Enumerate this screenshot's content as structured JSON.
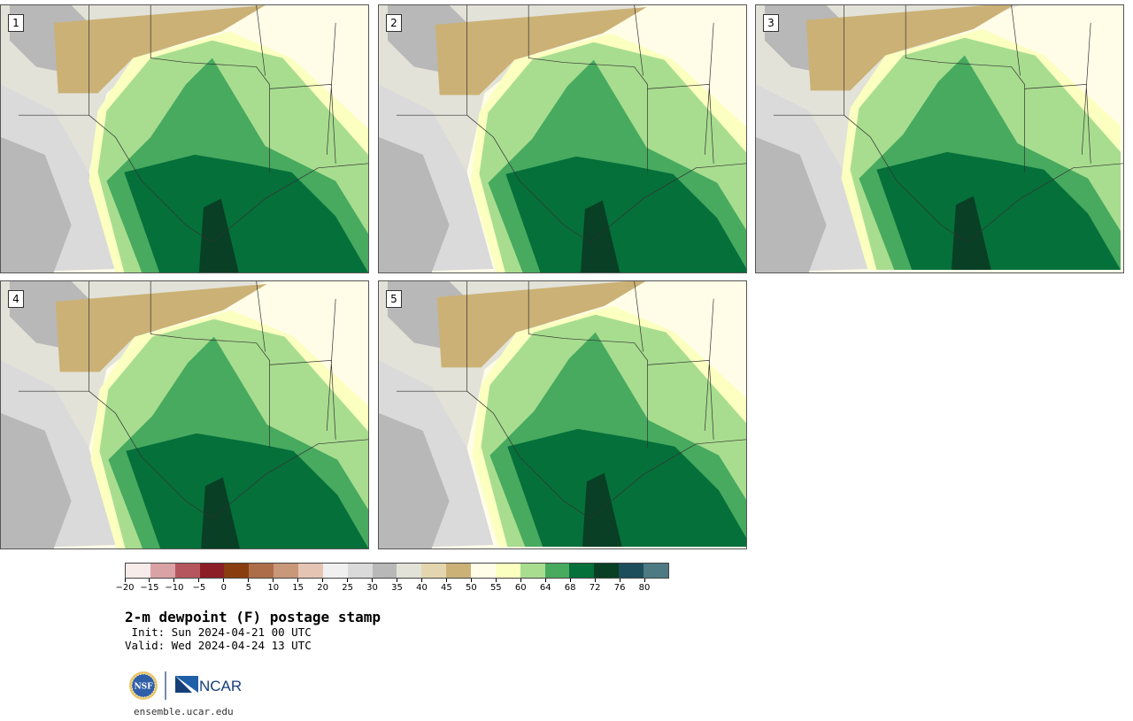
{
  "panels": [
    {
      "label": "1"
    },
    {
      "label": "2"
    },
    {
      "label": "3"
    },
    {
      "label": "4"
    },
    {
      "label": "5"
    }
  ],
  "colorbar": {
    "colors": [
      "#f7ecea",
      "#d9a3a6",
      "#b5565e",
      "#8c1e28",
      "#8a3e10",
      "#ad6d48",
      "#c9977a",
      "#e6c4b4",
      "#f0f0f0",
      "#dadada",
      "#b8b8b8",
      "#e2e2d8",
      "#e3d6ae",
      "#cbb176",
      "#fffde8",
      "#fbffc0",
      "#a8dd8f",
      "#47aa5f",
      "#05703a",
      "#083f25",
      "#1c4e5c",
      "#4d7a83"
    ],
    "tick_labels": [
      "−20",
      "−15",
      "−10",
      "−5",
      "0",
      "5",
      "10",
      "15",
      "20",
      "25",
      "30",
      "35",
      "40",
      "45",
      "50",
      "55",
      "60",
      "64",
      "68",
      "72",
      "76",
      "80"
    ]
  },
  "title": "2-m dewpoint (F) postage stamp",
  "init": " Init: Sun 2024-04-21 00 UTC",
  "valid": "Valid: Wed 2024-04-24 13 UTC",
  "logo": {
    "nsf": "NSF",
    "ncar": "NCAR"
  },
  "footer": "ensemble.ucar.edu"
}
